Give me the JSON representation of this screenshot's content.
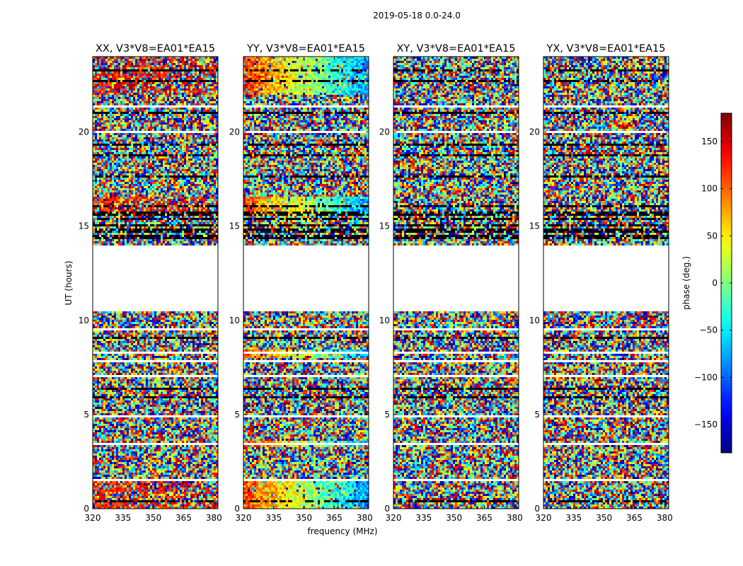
{
  "figure": {
    "title": "2019-05-18 0.0-24.0"
  },
  "chart_data": {
    "type": "heatmap",
    "title": "2019-05-18 0.0-24.0",
    "xlabel": "frequency (MHz)",
    "ylabel": "UT (hours)",
    "xlim": [
      320,
      382
    ],
    "ylim": [
      0,
      24
    ],
    "xticks": [
      "320",
      "335",
      "350",
      "365",
      "380"
    ],
    "yticks": [
      "0",
      "5",
      "10",
      "15",
      "20"
    ],
    "panels": [
      {
        "name": "XX",
        "title": "XX, V3*V8=EA01*EA15",
        "pattern": "xx"
      },
      {
        "name": "YY",
        "title": "YY, V3*V8=EA01*EA15",
        "pattern": "yy"
      },
      {
        "name": "XY",
        "title": "XY, V3*V8=EA01*EA15",
        "pattern": "noise"
      },
      {
        "name": "YX",
        "title": "YX, V3*V8=EA01*EA15",
        "pattern": "noise"
      }
    ],
    "colorbar": {
      "label": "phase (deg.)",
      "range": [
        -180,
        180
      ],
      "colormap": "jet",
      "ticks": [
        "−150",
        "−100",
        "−50",
        "0",
        "50",
        "100",
        "150"
      ],
      "tick_values": [
        -150,
        -100,
        -50,
        0,
        50,
        100,
        150
      ]
    },
    "data_gap_hours": [
      10.5,
      14.0
    ]
  }
}
